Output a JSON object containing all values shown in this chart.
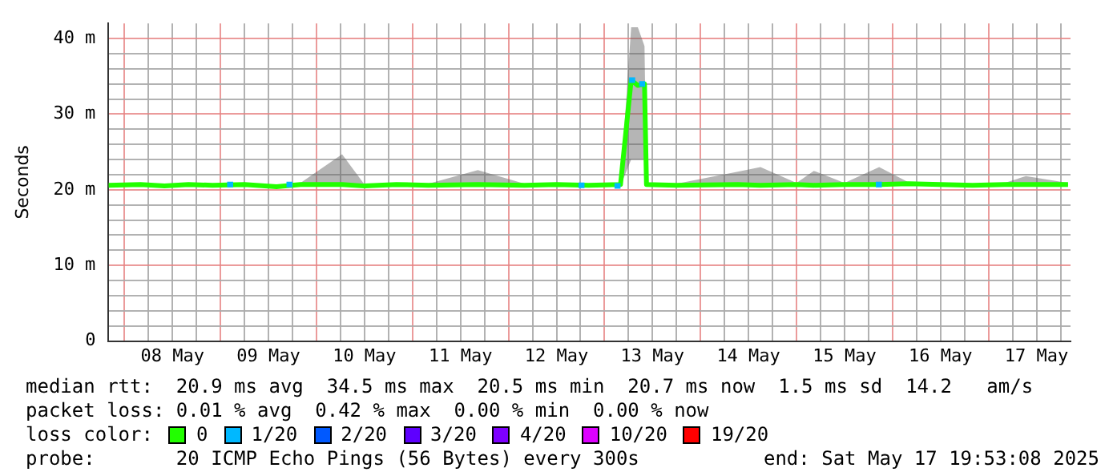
{
  "chart_data": {
    "type": "line",
    "ylabel": "Seconds",
    "legend_title": "loss color:",
    "legend": "bottom",
    "grid": true,
    "marker": "none",
    "line_style": "solid",
    "xlim": [
      "2025-05-07T20:00",
      "2025-05-17T20:30"
    ],
    "xticks": [
      {
        "value": "2025-05-08T00:00",
        "label": null
      },
      {
        "value": "2025-05-08T06:00",
        "label": null
      },
      {
        "value": "2025-05-08T12:00",
        "label": "08 May"
      },
      {
        "value": "2025-05-08T18:00",
        "label": null
      },
      {
        "value": "2025-05-09T00:00",
        "label": null
      },
      {
        "value": "2025-05-09T06:00",
        "label": null
      },
      {
        "value": "2025-05-09T12:00",
        "label": "09 May"
      },
      {
        "value": "2025-05-09T18:00",
        "label": null
      },
      {
        "value": "2025-05-10T00:00",
        "label": null
      },
      {
        "value": "2025-05-10T06:00",
        "label": null
      },
      {
        "value": "2025-05-10T12:00",
        "label": "10 May"
      },
      {
        "value": "2025-05-10T18:00",
        "label": null
      },
      {
        "value": "2025-05-11T00:00",
        "label": null
      },
      {
        "value": "2025-05-11T06:00",
        "label": null
      },
      {
        "value": "2025-05-11T12:00",
        "label": "11 May"
      },
      {
        "value": "2025-05-11T18:00",
        "label": null
      },
      {
        "value": "2025-05-12T00:00",
        "label": null
      },
      {
        "value": "2025-05-12T06:00",
        "label": null
      },
      {
        "value": "2025-05-12T12:00",
        "label": "12 May"
      },
      {
        "value": "2025-05-12T18:00",
        "label": null
      },
      {
        "value": "2025-05-13T00:00",
        "label": null
      },
      {
        "value": "2025-05-13T06:00",
        "label": null
      },
      {
        "value": "2025-05-13T12:00",
        "label": "13 May"
      },
      {
        "value": "2025-05-13T18:00",
        "label": null
      },
      {
        "value": "2025-05-14T00:00",
        "label": null
      },
      {
        "value": "2025-05-14T06:00",
        "label": null
      },
      {
        "value": "2025-05-14T12:00",
        "label": "14 May"
      },
      {
        "value": "2025-05-14T18:00",
        "label": null
      },
      {
        "value": "2025-05-15T00:00",
        "label": null
      },
      {
        "value": "2025-05-15T06:00",
        "label": null
      },
      {
        "value": "2025-05-15T12:00",
        "label": "15 May"
      },
      {
        "value": "2025-05-15T18:00",
        "label": null
      },
      {
        "value": "2025-05-16T00:00",
        "label": null
      },
      {
        "value": "2025-05-16T06:00",
        "label": null
      },
      {
        "value": "2025-05-16T12:00",
        "label": "16 May"
      },
      {
        "value": "2025-05-16T18:00",
        "label": null
      },
      {
        "value": "2025-05-17T00:00",
        "label": null
      },
      {
        "value": "2025-05-17T06:00",
        "label": null
      },
      {
        "value": "2025-05-17T12:00",
        "label": "17 May"
      },
      {
        "value": "2025-05-17T18:00",
        "label": null
      }
    ],
    "ylim": [
      0,
      42
    ],
    "yticks": [
      0,
      {
        "value": 2,
        "label": null
      },
      {
        "value": 4,
        "label": null
      },
      {
        "value": 6,
        "label": null
      },
      {
        "value": 8,
        "label": null
      },
      {
        "value": 10,
        "label": "10 m"
      },
      {
        "value": 12,
        "label": null
      },
      {
        "value": 14,
        "label": null
      },
      {
        "value": 16,
        "label": null
      },
      {
        "value": 18,
        "label": null
      },
      {
        "value": 20,
        "label": "20 m"
      },
      {
        "value": 22,
        "label": null
      },
      {
        "value": 24,
        "label": null
      },
      {
        "value": 26,
        "label": null
      },
      {
        "value": 28,
        "label": null
      },
      {
        "value": 30,
        "label": "30 m"
      },
      {
        "value": 32,
        "label": null
      },
      {
        "value": 34,
        "label": null
      },
      {
        "value": 36,
        "label": null
      },
      {
        "value": 38,
        "label": null
      },
      {
        "value": 40,
        "label": "40 m"
      }
    ],
    "series": [
      {
        "name": "0",
        "color": "#22ff00",
        "x": [
          "2025-05-07T20:00",
          "2025-05-08T04:00",
          "2025-05-08T10:00",
          "2025-05-08T16:00",
          "2025-05-08T22:00",
          "2025-05-09T06:00",
          "2025-05-09T14:00",
          "2025-05-09T20:00",
          "2025-05-10T06:24",
          "2025-05-10T12:00",
          "2025-05-10T20:00",
          "2025-05-11T04:00",
          "2025-05-11T16:20",
          "2025-05-12T04:00",
          "2025-05-12T12:00",
          "2025-05-12T20:00",
          "2025-05-13T04:00",
          "2025-05-13T06:40",
          "2025-05-13T08:20",
          "2025-05-13T10:00",
          "2025-05-13T10:30",
          "2025-05-13T18:00",
          "2025-05-14T09:20",
          "2025-05-14T15:00",
          "2025-05-15T00:00",
          "2025-05-15T04:20",
          "2025-05-15T12:00",
          "2025-05-15T20:40",
          "2025-05-16T04:00",
          "2025-05-16T12:00",
          "2025-05-16T20:00",
          "2025-05-17T04:00",
          "2025-05-17T09:20",
          "2025-05-17T19:53"
        ],
        "values": [
          20.6,
          20.7,
          20.5,
          20.7,
          20.6,
          20.7,
          20.4,
          20.7,
          20.7,
          20.5,
          20.7,
          20.6,
          20.7,
          20.6,
          20.7,
          20.6,
          20.7,
          34.5,
          33.8,
          34,
          20.7,
          20.6,
          20.7,
          20.6,
          20.7,
          20.6,
          20.7,
          20.7,
          20.8,
          20.7,
          20.6,
          20.7,
          20.7,
          20.7
        ],
        "lower": [
          20.4,
          20.5,
          20.3,
          20.5,
          20.4,
          20.5,
          20.2,
          20.5,
          20.5,
          20.3,
          20.5,
          20.4,
          20.5,
          20.4,
          20.5,
          20.4,
          20.5,
          24,
          24,
          24,
          20.5,
          20.4,
          20.5,
          20.4,
          20.5,
          20.4,
          20.5,
          20.5,
          20.6,
          20.5,
          20.4,
          20.5,
          20.5,
          20.5
        ],
        "upper": [
          20.8,
          20.9,
          20.7,
          20.9,
          20.8,
          20.9,
          20.6,
          20.9,
          24.7,
          20.7,
          20.9,
          20.8,
          22.6,
          20.8,
          20.9,
          20.8,
          20.9,
          41.5,
          41.5,
          39,
          20.9,
          20.8,
          22.4,
          23,
          20.9,
          22.5,
          20.9,
          23,
          21,
          20.9,
          20.8,
          20.9,
          21.8,
          20.9
        ]
      },
      {
        "name": "1/20",
        "color": "#00b8ff",
        "x": [
          "2025-05-09T01:40",
          "2025-05-09T03:10",
          "2025-05-09T04:00",
          "2025-05-09T16:30",
          "2025-05-09T18:00",
          "2025-05-09T18:30",
          "2025-05-12T17:30",
          "2025-05-12T19:00",
          "2025-05-12T19:30",
          "2025-05-13T02:30",
          "2025-05-13T04:00",
          "2025-05-13T04:30",
          "2025-05-13T06:10",
          "2025-05-13T07:40",
          "2025-05-13T08:00",
          "2025-05-13T08:40",
          "2025-05-13T10:10",
          "2025-05-13T11:00",
          "2025-05-15T19:50",
          "2025-05-15T21:20"
        ],
        "values": [
          20.7,
          20.7,
          null,
          20.7,
          20.7,
          null,
          20.6,
          20.6,
          null,
          20.5,
          20.5,
          null,
          34.5,
          34.5,
          null,
          34,
          34,
          null,
          20.7,
          20.7
        ]
      },
      {
        "name": "2/20",
        "color": "#0059ff"
      },
      {
        "name": "3/20",
        "color": "#5e00ff"
      },
      {
        "name": "4/20",
        "color": "#7e00ff"
      },
      {
        "name": "10/20",
        "color": "#dd00ff"
      },
      {
        "name": "19/20",
        "color": "#ff0000"
      }
    ],
    "annotations": [
      "median rtt:  20.9 ms avg  34.5 ms max  20.5 ms min  20.7 ms now  1.5 ms sd  14.2   am/s",
      "packet loss: 0.01 % avg  0.42 % max  0.00 % min  0.00 % now",
      "probe:       20 ICMP Echo Pings (56 Bytes) every 300s",
      "end: Sat May 17 19:53:08 2025"
    ]
  }
}
